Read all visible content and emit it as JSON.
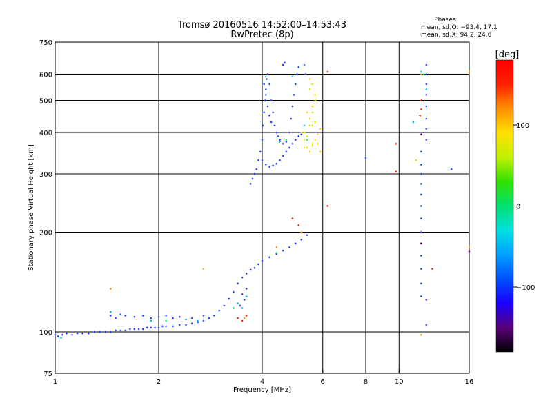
{
  "chart_data": {
    "type": "scatter",
    "title": "Tromsø 20160516 14:52:00–14:53:43",
    "subtitle": "RwPretec (8p)",
    "xlabel": "Frequency [MHz]",
    "ylabel": "Stationary phase Virtual Height [km]",
    "x_scale": "log",
    "y_scale": "log",
    "xlim": [
      1,
      16
    ],
    "ylim": [
      75,
      750
    ],
    "x_ticks": [
      1,
      2,
      4,
      6,
      8,
      10,
      16
    ],
    "x_ticklabels": [
      "1",
      "2",
      "4",
      "6",
      "8",
      "10",
      "16"
    ],
    "x_gridlines": [
      2,
      4,
      6,
      8,
      10
    ],
    "y_ticks": [
      75,
      100,
      200,
      300,
      400,
      500,
      600,
      750
    ],
    "y_ticklabels": [
      "75",
      "100",
      "200",
      "300",
      "400",
      "500",
      "600",
      "750"
    ],
    "y_gridlines": [
      100,
      200,
      300,
      400,
      500,
      600
    ],
    "grid": true,
    "legend": {
      "title": "Phases",
      "line1": "mean, sd,O: −93.4, 17.1",
      "line2": "mean, sd,X:  94.2, 24.6",
      "placement": "top-right"
    },
    "colorbar": {
      "label": "[deg]",
      "ticks": [
        100,
        0,
        -100
      ],
      "ticklabels": [
        "100",
        "0",
        "−100"
      ],
      "range": [
        -180,
        180
      ],
      "colors": [
        "#000000",
        "#5a007a",
        "#1a00ff",
        "#0050ff",
        "#00a0ff",
        "#00e0e0",
        "#00e070",
        "#30e000",
        "#c0f000",
        "#ffe000",
        "#ff9000",
        "#ff2000",
        "#ff0000"
      ]
    },
    "series": [
      {
        "color": "#1e3cff",
        "points": [
          [
            1.0,
            98
          ],
          [
            1.02,
            97
          ],
          [
            1.05,
            98
          ],
          [
            1.08,
            99
          ],
          [
            1.12,
            98
          ],
          [
            1.16,
            99
          ],
          [
            1.2,
            99
          ],
          [
            1.25,
            99
          ],
          [
            1.3,
            100
          ],
          [
            1.35,
            100
          ],
          [
            1.4,
            100
          ],
          [
            1.45,
            100
          ],
          [
            1.5,
            101
          ],
          [
            1.55,
            101
          ],
          [
            1.6,
            101
          ],
          [
            1.65,
            102
          ],
          [
            1.7,
            102
          ],
          [
            1.75,
            102
          ],
          [
            1.8,
            102
          ],
          [
            1.85,
            103
          ],
          [
            1.9,
            103
          ],
          [
            1.95,
            103
          ],
          [
            2.0,
            103
          ],
          [
            2.05,
            104
          ],
          [
            2.1,
            104
          ],
          [
            2.2,
            104
          ],
          [
            2.3,
            105
          ],
          [
            2.4,
            105
          ],
          [
            2.5,
            106
          ],
          [
            2.6,
            107
          ],
          [
            2.7,
            108
          ],
          [
            2.8,
            110
          ],
          [
            2.9,
            112
          ],
          [
            3.0,
            116
          ],
          [
            3.1,
            120
          ],
          [
            3.2,
            126
          ],
          [
            3.3,
            132
          ],
          [
            3.4,
            140
          ],
          [
            3.5,
            146
          ],
          [
            3.6,
            150
          ],
          [
            3.7,
            154
          ],
          [
            3.8,
            156
          ],
          [
            3.9,
            160
          ],
          [
            4.0,
            164
          ],
          [
            4.2,
            168
          ],
          [
            4.4,
            172
          ],
          [
            4.6,
            176
          ],
          [
            4.8,
            180
          ],
          [
            5.0,
            185
          ],
          [
            5.2,
            190
          ],
          [
            5.4,
            196
          ],
          [
            1.45,
            112
          ],
          [
            1.5,
            110
          ],
          [
            1.55,
            113
          ],
          [
            1.6,
            112
          ],
          [
            1.7,
            111
          ],
          [
            1.8,
            112
          ],
          [
            1.9,
            110
          ],
          [
            2.0,
            111
          ],
          [
            2.1,
            112
          ],
          [
            2.2,
            110
          ],
          [
            2.3,
            111
          ],
          [
            2.5,
            110
          ],
          [
            2.7,
            112
          ],
          [
            3.7,
            280
          ],
          [
            3.75,
            290
          ],
          [
            3.8,
            300
          ],
          [
            3.85,
            310
          ],
          [
            3.9,
            330
          ],
          [
            3.95,
            350
          ],
          [
            4.0,
            380
          ],
          [
            4.02,
            420
          ],
          [
            4.05,
            460
          ],
          [
            4.08,
            500
          ],
          [
            4.1,
            540
          ],
          [
            4.12,
            580
          ],
          [
            4.15,
            600
          ],
          [
            4.2,
            560
          ],
          [
            4.25,
            500
          ],
          [
            4.3,
            460
          ],
          [
            4.35,
            420
          ],
          [
            4.4,
            400
          ],
          [
            4.45,
            390
          ],
          [
            4.5,
            380
          ],
          [
            4.6,
            370
          ],
          [
            4.7,
            375
          ],
          [
            4.8,
            400
          ],
          [
            4.85,
            440
          ],
          [
            4.9,
            480
          ],
          [
            4.95,
            520
          ],
          [
            5.0,
            560
          ],
          [
            5.05,
            600
          ],
          [
            5.1,
            630
          ],
          [
            4.6,
            640
          ],
          [
            4.65,
            650
          ],
          [
            5.3,
            640
          ],
          [
            5.35,
            600
          ],
          [
            4.0,
            330
          ],
          [
            4.1,
            320
          ],
          [
            4.2,
            315
          ],
          [
            4.3,
            318
          ],
          [
            4.4,
            322
          ],
          [
            4.5,
            330
          ],
          [
            4.6,
            340
          ],
          [
            4.7,
            350
          ],
          [
            4.8,
            360
          ],
          [
            4.9,
            370
          ],
          [
            5.0,
            380
          ],
          [
            5.1,
            390
          ],
          [
            5.2,
            395
          ],
          [
            4.05,
            560
          ],
          [
            4.1,
            520
          ],
          [
            4.15,
            480
          ],
          [
            4.2,
            450
          ],
          [
            4.25,
            430
          ],
          [
            12.0,
            640
          ],
          [
            12.0,
            600
          ],
          [
            12.0,
            560
          ],
          [
            12.0,
            520
          ],
          [
            12.0,
            480
          ],
          [
            12.0,
            440
          ],
          [
            12.0,
            410
          ],
          [
            12.0,
            380
          ],
          [
            11.6,
            350
          ],
          [
            11.6,
            320
          ],
          [
            11.6,
            300
          ],
          [
            11.6,
            280
          ],
          [
            11.6,
            260
          ],
          [
            11.6,
            240
          ],
          [
            11.6,
            220
          ],
          [
            11.6,
            200
          ],
          [
            11.6,
            185
          ],
          [
            11.6,
            170
          ],
          [
            11.6,
            155
          ],
          [
            11.6,
            140
          ],
          [
            11.6,
            128
          ],
          [
            12.0,
            125
          ],
          [
            12.0,
            105
          ],
          [
            8.0,
            335
          ],
          [
            14.2,
            310
          ],
          [
            3.55,
            125
          ],
          [
            3.5,
            130
          ],
          [
            3.45,
            120
          ],
          [
            3.6,
            135
          ]
        ]
      },
      {
        "color": "#00b4ff",
        "points": [
          [
            1.04,
            96
          ],
          [
            1.45,
            115
          ],
          [
            1.9,
            108
          ],
          [
            2.4,
            109
          ],
          [
            2.6,
            108
          ],
          [
            3.4,
            122
          ],
          [
            3.5,
            118
          ],
          [
            3.6,
            128
          ],
          [
            4.1,
            590
          ],
          [
            4.9,
            590
          ],
          [
            11.0,
            430
          ],
          [
            11.6,
            610
          ],
          [
            12.0,
            540
          ],
          [
            5.3,
            420
          ],
          [
            4.5,
            375
          ]
        ]
      },
      {
        "color": "#00e070",
        "points": [
          [
            2.1,
            108
          ],
          [
            3.3,
            118
          ],
          [
            4.4,
            173
          ],
          [
            5.4,
            380
          ],
          [
            11.8,
            600
          ],
          [
            11.2,
            330
          ],
          [
            4.7,
            380
          ]
        ]
      },
      {
        "color": "#c0f000",
        "points": [
          [
            5.2,
            400
          ],
          [
            5.4,
            390
          ],
          [
            5.6,
            370
          ],
          [
            5.5,
            420
          ],
          [
            5.3,
            360
          ],
          [
            5.6,
            460
          ],
          [
            5.7,
            500
          ],
          [
            5.5,
            540
          ],
          [
            5.6,
            560
          ],
          [
            5.7,
            430
          ]
        ]
      },
      {
        "color": "#ffd000",
        "points": [
          [
            5.3,
            380
          ],
          [
            5.4,
            360
          ],
          [
            5.5,
            350
          ],
          [
            5.6,
            365
          ],
          [
            5.7,
            380
          ],
          [
            5.8,
            395
          ],
          [
            5.5,
            440
          ],
          [
            5.6,
            480
          ],
          [
            5.7,
            520
          ],
          [
            5.5,
            580
          ],
          [
            5.6,
            420
          ],
          [
            5.3,
            400
          ],
          [
            5.8,
            370
          ],
          [
            5.9,
            410
          ],
          [
            5.4,
            460
          ],
          [
            11.2,
            330
          ],
          [
            5.9,
            350
          ]
        ]
      },
      {
        "color": "#ff9000",
        "points": [
          [
            1.45,
            135
          ],
          [
            2.7,
            155
          ],
          [
            3.55,
            110
          ],
          [
            3.6,
            112
          ],
          [
            4.4,
            180
          ],
          [
            5.2,
            200
          ],
          [
            11.6,
            600
          ],
          [
            11.6,
            98
          ],
          [
            16.0,
            610
          ],
          [
            16.0,
            180
          ]
        ]
      },
      {
        "color": "#ff2000",
        "points": [
          [
            3.5,
            108
          ],
          [
            3.6,
            112
          ],
          [
            4.9,
            220
          ],
          [
            5.1,
            210
          ],
          [
            6.2,
            610
          ],
          [
            6.2,
            240
          ],
          [
            9.8,
            370
          ],
          [
            11.6,
            500
          ],
          [
            11.6,
            470
          ],
          [
            11.5,
            450
          ],
          [
            12.5,
            155
          ],
          [
            9.8,
            305
          ],
          [
            3.4,
            110
          ]
        ]
      },
      {
        "color": "#5a007a",
        "points": [
          [
            11.6,
            395
          ],
          [
            16.0,
            175
          ],
          [
            11.6,
            185
          ]
        ]
      }
    ]
  }
}
